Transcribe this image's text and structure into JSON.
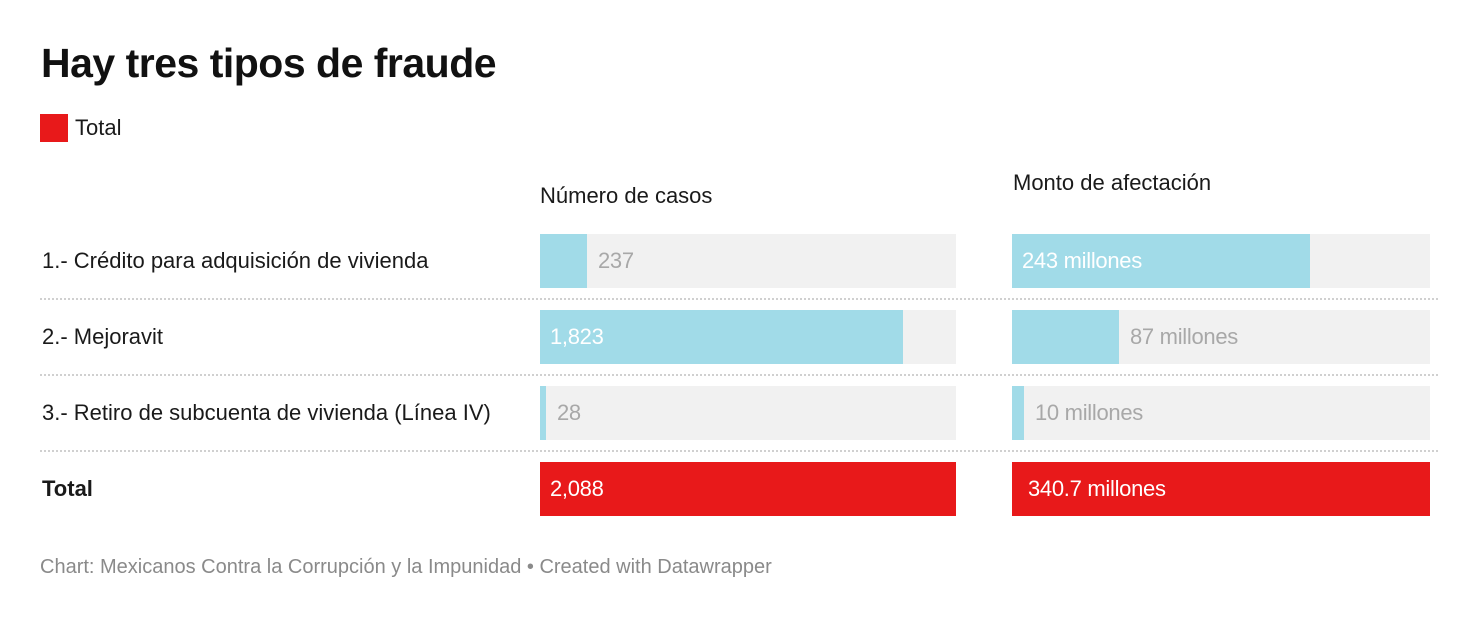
{
  "title": "Hay tres tipos de fraude",
  "legend": {
    "label": "Total",
    "color": "#e8191a"
  },
  "colors": {
    "bar": "#a1dbe8",
    "total": "#e8191a",
    "track": "#f1f1f1"
  },
  "footer": "Chart: Mexicanos Contra la Corrupción y la Impunidad • Created with Datawrapper",
  "chart_data": {
    "type": "bar",
    "columns": [
      "Número de casos",
      "Monto de afectación"
    ],
    "categories": [
      "1.- Crédito para adquisición de vivienda",
      "2.- Mejoravit",
      "3.- Retiro de subcuenta de vivienda (Línea IV)",
      "Total"
    ],
    "series": [
      {
        "name": "Número de casos",
        "values": [
          237,
          1823,
          28,
          2088
        ],
        "labels": [
          "237",
          "1,823",
          "28",
          "2,088"
        ]
      },
      {
        "name": "Monto de afectación",
        "values": [
          243,
          87,
          10,
          340.7
        ],
        "labels": [
          "243 millones",
          "87 millones",
          "10 millones",
          "340.7 millones"
        ]
      }
    ]
  }
}
